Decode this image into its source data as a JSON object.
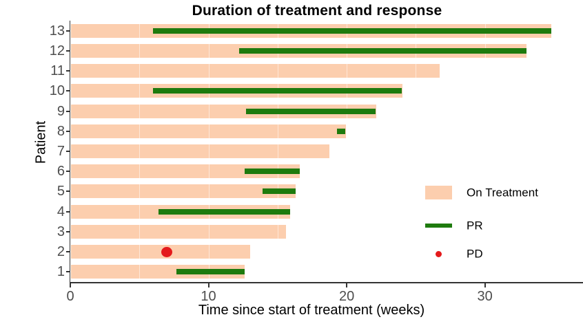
{
  "title": "Duration of treatment and response",
  "axes": {
    "x_label": "Time since start of treatment (weeks)",
    "y_label": "Patient",
    "x_ticks": [
      0,
      10,
      20,
      30
    ],
    "x_max": 37.1,
    "grid_minor_step": 5
  },
  "legend": [
    {
      "label": "On Treatment",
      "type": "bar"
    },
    {
      "label": "PR",
      "type": "line"
    },
    {
      "label": "PD",
      "type": "dot"
    }
  ],
  "colors": {
    "on_treatment": "#FCCEAE",
    "pr": "#1E7B0E",
    "pd": "#E41A1C",
    "tick_label": "#4D4D4D",
    "axis_line": "#333333"
  },
  "chart_data": {
    "type": "bar",
    "subtype": "swimmer-plot",
    "title": "Duration of treatment and response",
    "xlabel": "Time since start of treatment (weeks)",
    "ylabel": "Patient",
    "xlim": [
      0,
      37
    ],
    "x_ticks": [
      0,
      10,
      20,
      30
    ],
    "grid": "faint white vertical lines every 5 weeks over bars",
    "legend_position": "inside lower right",
    "series_names": [
      "On Treatment",
      "PR",
      "PD"
    ],
    "patients": [
      {
        "patient": 13,
        "on_treatment_weeks": 34.8,
        "pr_start": 6.0,
        "pr_end": 34.8,
        "pd_week": null
      },
      {
        "patient": 12,
        "on_treatment_weeks": 33.0,
        "pr_start": 12.2,
        "pr_end": 33.0,
        "pd_week": null
      },
      {
        "patient": 11,
        "on_treatment_weeks": 26.7,
        "pr_start": null,
        "pr_end": null,
        "pd_week": null
      },
      {
        "patient": 10,
        "on_treatment_weeks": 24.0,
        "pr_start": 6.0,
        "pr_end": 24.0,
        "pd_week": null
      },
      {
        "patient": 9,
        "on_treatment_weeks": 22.1,
        "pr_start": 12.7,
        "pr_end": 22.1,
        "pd_week": null
      },
      {
        "patient": 8,
        "on_treatment_weeks": 19.9,
        "pr_start": 19.3,
        "pr_end": 19.9,
        "pd_week": null
      },
      {
        "patient": 7,
        "on_treatment_weeks": 18.7,
        "pr_start": null,
        "pr_end": null,
        "pd_week": null
      },
      {
        "patient": 6,
        "on_treatment_weeks": 16.6,
        "pr_start": 12.6,
        "pr_end": 16.6,
        "pd_week": null
      },
      {
        "patient": 5,
        "on_treatment_weeks": 16.3,
        "pr_start": 13.9,
        "pr_end": 16.3,
        "pd_week": null
      },
      {
        "patient": 4,
        "on_treatment_weeks": 15.9,
        "pr_start": 6.4,
        "pr_end": 15.9,
        "pd_week": null
      },
      {
        "patient": 3,
        "on_treatment_weeks": 15.6,
        "pr_start": null,
        "pr_end": null,
        "pd_week": null
      },
      {
        "patient": 2,
        "on_treatment_weeks": 13.0,
        "pr_start": null,
        "pr_end": null,
        "pd_week": 7.0
      },
      {
        "patient": 1,
        "on_treatment_weeks": 12.6,
        "pr_start": 7.7,
        "pr_end": 12.6,
        "pd_week": null
      }
    ]
  }
}
